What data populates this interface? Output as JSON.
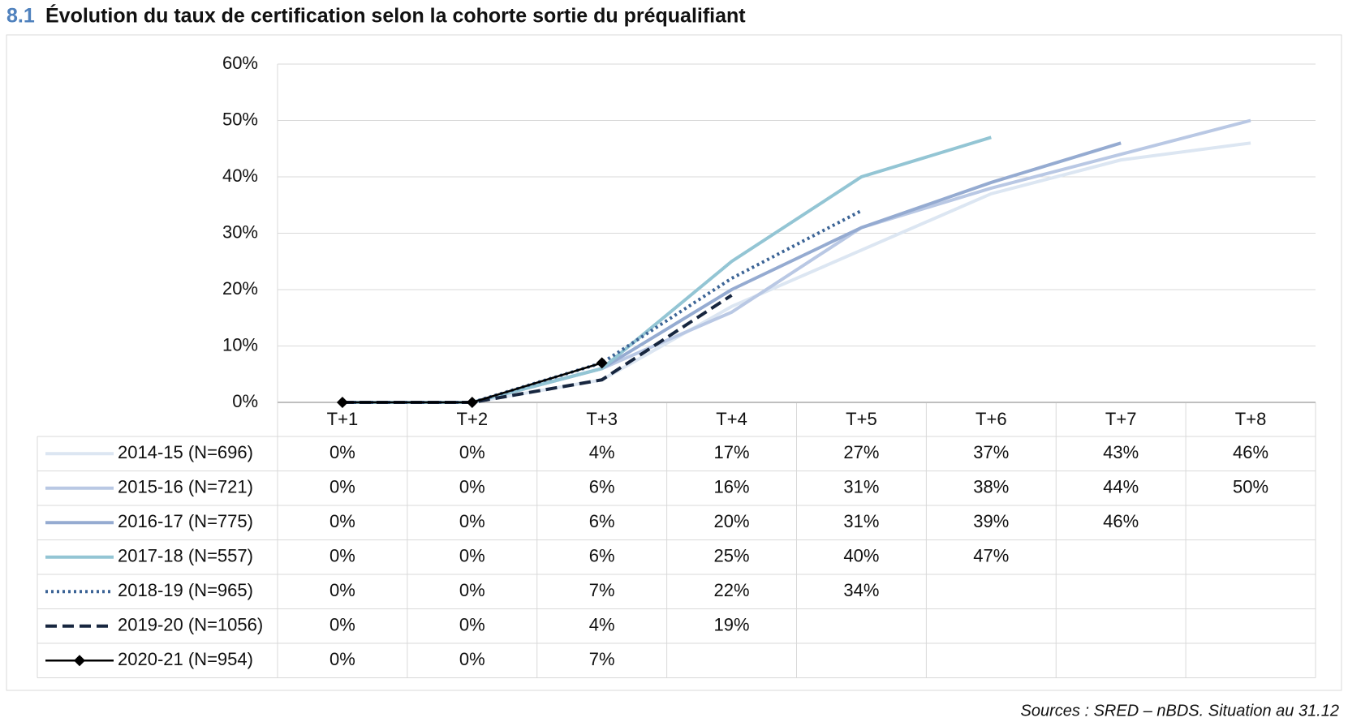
{
  "chart_data": {
    "type": "line",
    "number": "8.1",
    "title": "Évolution du taux de certification selon la cohorte sortie du préqualifiant",
    "source": "Sources : SRED – nBDS. Situation au 31.12",
    "categories": [
      "T+1",
      "T+2",
      "T+3",
      "T+4",
      "T+5",
      "T+6",
      "T+7",
      "T+8"
    ],
    "ylim": [
      0,
      60
    ],
    "yticks": [
      {
        "value": 0,
        "label": "0%"
      },
      {
        "value": 10,
        "label": "10%"
      },
      {
        "value": 20,
        "label": "20%"
      },
      {
        "value": 30,
        "label": "30%"
      },
      {
        "value": 40,
        "label": "40%"
      },
      {
        "value": 50,
        "label": "50%"
      },
      {
        "value": 60,
        "label": "60%"
      }
    ],
    "grid": true,
    "series": [
      {
        "name": "2014-15 (N=696)",
        "color": "#dce6f2",
        "style": "solid",
        "values": [
          0,
          0,
          4,
          17,
          27,
          37,
          43,
          46
        ],
        "value_labels": [
          "0%",
          "0%",
          "4%",
          "17%",
          "27%",
          "37%",
          "43%",
          "46%"
        ]
      },
      {
        "name": "2015-16 (N=721)",
        "color": "#b9c8e4",
        "style": "solid",
        "values": [
          0,
          0,
          6,
          16,
          31,
          38,
          44,
          50
        ],
        "value_labels": [
          "0%",
          "0%",
          "6%",
          "16%",
          "31%",
          "38%",
          "44%",
          "50%"
        ]
      },
      {
        "name": "2016-17 (N=775)",
        "color": "#95abd1",
        "style": "solid",
        "values": [
          0,
          0,
          6,
          20,
          31,
          39,
          46,
          null
        ],
        "value_labels": [
          "0%",
          "0%",
          "6%",
          "20%",
          "31%",
          "39%",
          "46%",
          null
        ]
      },
      {
        "name": "2017-18 (N=557)",
        "color": "#93c5d4",
        "style": "solid",
        "values": [
          0,
          0,
          6,
          25,
          40,
          47,
          null,
          null
        ],
        "value_labels": [
          "0%",
          "0%",
          "6%",
          "25%",
          "40%",
          "47%",
          null,
          null
        ]
      },
      {
        "name": "2018-19 (N=965)",
        "color": "#3c6496",
        "style": "dotted",
        "values": [
          0,
          0,
          7,
          22,
          34,
          null,
          null,
          null
        ],
        "value_labels": [
          "0%",
          "0%",
          "7%",
          "22%",
          "34%",
          null,
          null,
          null
        ]
      },
      {
        "name": "2019-20 (N=1056)",
        "color": "#17263f",
        "style": "dashed",
        "values": [
          0,
          0,
          4,
          19,
          null,
          null,
          null,
          null
        ],
        "value_labels": [
          "0%",
          "0%",
          "4%",
          "19%",
          null,
          null,
          null,
          null
        ]
      },
      {
        "name": "2020-21 (N=954)",
        "color": "#000000",
        "style": "solid",
        "marker": "diamond",
        "values": [
          0,
          0,
          7,
          null,
          null,
          null,
          null,
          null
        ],
        "value_labels": [
          "0%",
          "0%",
          "7%",
          null,
          null,
          null,
          null,
          null
        ]
      }
    ]
  }
}
